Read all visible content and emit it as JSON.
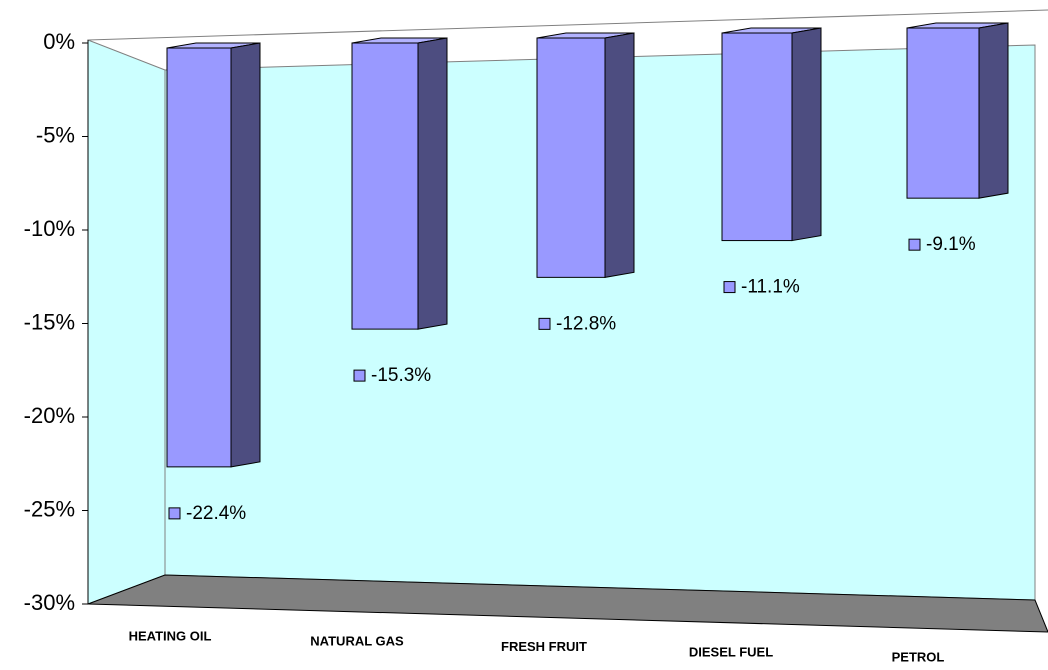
{
  "chart_data": {
    "type": "bar3d",
    "categories": [
      "HEATING OIL",
      "NATURAL GAS",
      "FRESH FRUIT",
      "DIESEL FUEL",
      "PETROL"
    ],
    "values": [
      -22.4,
      -15.3,
      -12.8,
      -11.1,
      -9.1
    ],
    "value_labels": [
      "-22.4%",
      "-15.3%",
      "-12.8%",
      "-11.1%",
      "-9.1%"
    ],
    "color": "#9999ff",
    "ylim": [
      -30,
      0
    ],
    "yticks": [
      {
        "value": 0,
        "label": "0%"
      },
      {
        "value": -5,
        "label": "-5%"
      },
      {
        "value": -10,
        "label": "-10%"
      },
      {
        "value": -15,
        "label": "-15%"
      },
      {
        "value": -20,
        "label": "-20%"
      },
      {
        "value": -25,
        "label": "-25%"
      },
      {
        "value": -30,
        "label": "-30%"
      }
    ]
  }
}
